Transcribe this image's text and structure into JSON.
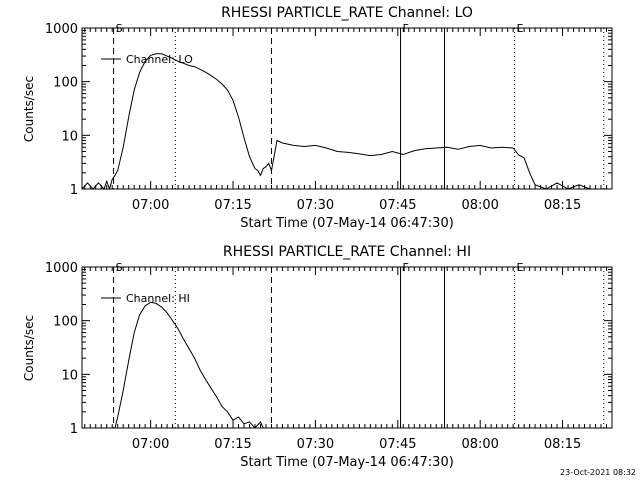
{
  "footer": {
    "timestamp": "23-Oct-2021 08:32"
  },
  "chart_data": [
    {
      "type": "line",
      "title": "RHESSI PARTICLE_RATE Channel: LO",
      "xlabel": "Start Time (07-May-14 06:47:30)",
      "ylabel": "Counts/sec",
      "y_scale": "log",
      "ylim": [
        1,
        1000
      ],
      "xlim": [
        "06:47:30",
        "08:24:00"
      ],
      "x_tick_labels": [
        "07:00",
        "07:15",
        "07:30",
        "07:45",
        "08:00",
        "08:15"
      ],
      "y_tick_labels": [
        "1",
        "10",
        "100",
        "1000"
      ],
      "legend": {
        "placement": "top-left",
        "entries": [
          "Channel: LO"
        ]
      },
      "markers": [
        {
          "time": "06:53:15",
          "style": "dashed",
          "label": "S"
        },
        {
          "time": "07:04:30",
          "style": "dotted",
          "label": ""
        },
        {
          "time": "07:22:00",
          "style": "dashed",
          "label": ""
        },
        {
          "time": "07:45:30",
          "style": "solid",
          "label": "F"
        },
        {
          "time": "07:53:30",
          "style": "solid",
          "label": ""
        },
        {
          "time": "08:06:15",
          "style": "dotted",
          "label": "E"
        },
        {
          "time": "08:22:30",
          "style": "dotted",
          "label": ""
        }
      ],
      "series": [
        {
          "name": "Channel: LO",
          "x": [
            "06:47:30",
            "06:48:30",
            "06:49:30",
            "06:50:30",
            "06:51:30",
            "06:52:00",
            "06:52:30",
            "06:53:00",
            "06:53:30",
            "06:54:00",
            "06:55:00",
            "06:56:00",
            "06:57:00",
            "06:58:00",
            "06:59:00",
            "07:00:00",
            "07:01:00",
            "07:02:00",
            "07:03:00",
            "07:04:00",
            "07:05:00",
            "07:06:00",
            "07:07:00",
            "07:08:00",
            "07:09:00",
            "07:10:00",
            "07:11:00",
            "07:12:00",
            "07:13:00",
            "07:14:00",
            "07:15:00",
            "07:16:00",
            "07:17:00",
            "07:18:00",
            "07:19:00",
            "07:19:30",
            "07:20:00",
            "07:20:30",
            "07:21:00",
            "07:21:30",
            "07:22:00",
            "07:23:00",
            "07:24:00",
            "07:26:00",
            "07:28:00",
            "07:30:00",
            "07:32:00",
            "07:34:00",
            "07:36:00",
            "07:38:00",
            "07:40:00",
            "07:42:00",
            "07:44:00",
            "07:46:00",
            "07:48:00",
            "07:50:00",
            "07:52:00",
            "07:54:00",
            "07:56:00",
            "07:58:00",
            "08:00:00",
            "08:02:00",
            "08:04:00",
            "08:06:00",
            "08:07:00",
            "08:08:00",
            "08:09:00",
            "08:10:00",
            "08:12:00",
            "08:14:00",
            "08:16:00",
            "08:18:00",
            "08:20:00",
            "08:22:00"
          ],
          "y": [
            1,
            1.3,
            1,
            1.3,
            1,
            1.4,
            1,
            1.5,
            1.8,
            2.2,
            6,
            22,
            70,
            150,
            240,
            310,
            330,
            330,
            300,
            270,
            240,
            220,
            200,
            190,
            170,
            150,
            130,
            110,
            90,
            70,
            45,
            22,
            9,
            4,
            2.4,
            2.2,
            1.8,
            2.4,
            2.6,
            3,
            2.2,
            8,
            7.2,
            6.5,
            6.2,
            6.5,
            5.8,
            5,
            4.8,
            4.5,
            4.2,
            4.4,
            5,
            4.4,
            5.2,
            5.6,
            5.8,
            6,
            5.5,
            6.2,
            6.5,
            5.8,
            6,
            5.8,
            4.3,
            3.8,
            2,
            1.2,
            1,
            1.3,
            1,
            1.2,
            1,
            1
          ]
        }
      ]
    },
    {
      "type": "line",
      "title": "RHESSI PARTICLE_RATE Channel: HI",
      "xlabel": "Start Time (07-May-14 06:47:30)",
      "ylabel": "Counts/sec",
      "y_scale": "log",
      "ylim": [
        1,
        1000
      ],
      "xlim": [
        "06:47:30",
        "08:24:00"
      ],
      "x_tick_labels": [
        "07:00",
        "07:15",
        "07:30",
        "07:45",
        "08:00",
        "08:15"
      ],
      "y_tick_labels": [
        "1",
        "10",
        "100",
        "1000"
      ],
      "legend": {
        "placement": "top-left",
        "entries": [
          "Channel: HI"
        ]
      },
      "markers": [
        {
          "time": "06:53:15",
          "style": "dashed",
          "label": "S"
        },
        {
          "time": "07:04:30",
          "style": "dotted",
          "label": ""
        },
        {
          "time": "07:22:00",
          "style": "dashed",
          "label": ""
        },
        {
          "time": "07:45:30",
          "style": "solid",
          "label": "F"
        },
        {
          "time": "07:53:30",
          "style": "solid",
          "label": ""
        },
        {
          "time": "08:06:15",
          "style": "dotted",
          "label": "E"
        },
        {
          "time": "08:22:30",
          "style": "dotted",
          "label": ""
        }
      ],
      "series": [
        {
          "name": "Channel: HI",
          "x": [
            "06:53:30",
            "06:54:00",
            "06:55:00",
            "06:56:00",
            "06:57:00",
            "06:58:00",
            "06:59:00",
            "07:00:00",
            "07:01:00",
            "07:02:00",
            "07:03:00",
            "07:04:00",
            "07:05:00",
            "07:06:00",
            "07:07:00",
            "07:08:00",
            "07:09:00",
            "07:10:00",
            "07:11:00",
            "07:12:00",
            "07:13:00",
            "07:14:00",
            "07:15:00",
            "07:16:00",
            "07:17:00",
            "07:18:00",
            "07:19:00",
            "07:20:00",
            "07:20:30"
          ],
          "y": [
            1,
            1.6,
            5,
            18,
            60,
            130,
            190,
            220,
            210,
            180,
            140,
            100,
            70,
            45,
            30,
            20,
            12,
            8,
            5.5,
            3.8,
            2.5,
            2,
            1.4,
            1.6,
            1.2,
            1.3,
            1,
            1.3,
            1
          ]
        }
      ]
    }
  ]
}
